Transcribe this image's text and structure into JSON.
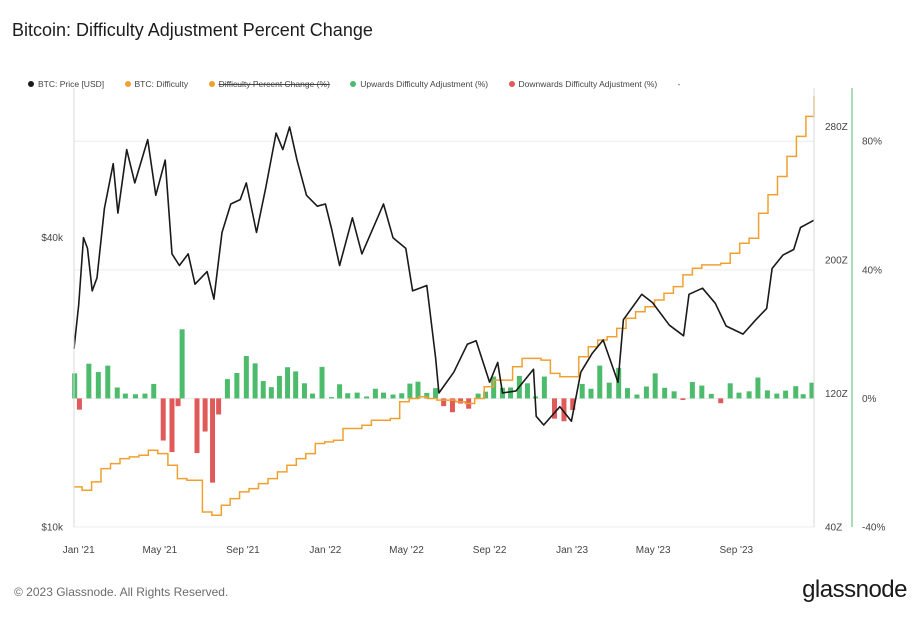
{
  "title": "Bitcoin: Difficulty Adjustment Percent Change",
  "legend": [
    {
      "label": "BTC: Price [USD]",
      "color": "#1a1a1a",
      "strike": false
    },
    {
      "label": "BTC: Difficulty",
      "color": "#f0a030",
      "strike": false
    },
    {
      "label": "Difficulty Percent Change (%)",
      "color": "#f0a030",
      "strike": true
    },
    {
      "label": "Upwards Difficulty Adjustment (%)",
      "color": "#4cbb6c",
      "strike": false
    },
    {
      "label": "Downwards Difficulty Adjustment (%)",
      "color": "#e05a5a",
      "strike": false
    }
  ],
  "legend_extra": "-",
  "footer": "© 2023 Glassnode. All Rights Reserved.",
  "brand": "glassnode",
  "colors": {
    "price": "#1a1a1a",
    "difficulty": "#f0a030",
    "up": "#4cbb6c",
    "down": "#e05a5a",
    "axis_right": "#4cbb6c"
  },
  "chart_data": {
    "type": "line",
    "title": "Bitcoin: Difficulty Adjustment Percent Change",
    "x_range": [
      "2020-12-25",
      "2023-12-25"
    ],
    "x_ticks": [
      {
        "label": "Jan '21",
        "date": "2021-01-01"
      },
      {
        "label": "May '21",
        "date": "2021-05-01"
      },
      {
        "label": "Sep '21",
        "date": "2021-09-01"
      },
      {
        "label": "Jan '22",
        "date": "2022-01-01"
      },
      {
        "label": "May '22",
        "date": "2022-05-01"
      },
      {
        "label": "Sep '22",
        "date": "2022-09-01"
      },
      {
        "label": "Jan '23",
        "date": "2023-01-01"
      },
      {
        "label": "May '23",
        "date": "2023-05-01"
      },
      {
        "label": "Sep '23",
        "date": "2023-09-01"
      }
    ],
    "axes": {
      "price": {
        "scale": "log",
        "range": [
          10000,
          80000
        ],
        "ticks": [
          {
            "label": "$40k",
            "value": 40000
          },
          {
            "label": "$10k",
            "value": 10000
          }
        ]
      },
      "difficulty": {
        "scale": "linear",
        "range": [
          40,
          300
        ],
        "unit": "Z",
        "ticks": [
          {
            "label": "280Z",
            "value": 280
          },
          {
            "label": "200Z",
            "value": 200
          },
          {
            "label": "120Z",
            "value": 120
          },
          {
            "label": "40Z",
            "value": 40
          }
        ]
      },
      "percent": {
        "scale": "linear",
        "range": [
          -40,
          95
        ],
        "ticks": [
          {
            "label": "80%",
            "value": 80
          },
          {
            "label": "40%",
            "value": 40
          },
          {
            "label": "0%",
            "value": 0
          },
          {
            "label": "-40%",
            "value": -40
          }
        ]
      }
    },
    "series": [
      {
        "name": "BTC: Price [USD]",
        "axis": "price",
        "points": [
          [
            "2020-12-25",
            23500
          ],
          [
            "2021-01-01",
            29000
          ],
          [
            "2021-01-08",
            40000
          ],
          [
            "2021-01-14",
            38000
          ],
          [
            "2021-01-21",
            31000
          ],
          [
            "2021-01-28",
            33000
          ],
          [
            "2021-02-08",
            46000
          ],
          [
            "2021-02-21",
            57000
          ],
          [
            "2021-02-28",
            45000
          ],
          [
            "2021-03-13",
            61000
          ],
          [
            "2021-03-25",
            52000
          ],
          [
            "2021-04-13",
            64000
          ],
          [
            "2021-04-25",
            49000
          ],
          [
            "2021-05-09",
            58000
          ],
          [
            "2021-05-19",
            37000
          ],
          [
            "2021-05-30",
            35000
          ],
          [
            "2021-06-12",
            37000
          ],
          [
            "2021-06-22",
            32000
          ],
          [
            "2021-07-10",
            34000
          ],
          [
            "2021-07-20",
            29800
          ],
          [
            "2021-08-01",
            41000
          ],
          [
            "2021-08-14",
            47000
          ],
          [
            "2021-08-28",
            48000
          ],
          [
            "2021-09-06",
            52000
          ],
          [
            "2021-09-21",
            41000
          ],
          [
            "2021-10-05",
            51000
          ],
          [
            "2021-10-20",
            66000
          ],
          [
            "2021-10-30",
            61000
          ],
          [
            "2021-11-09",
            68000
          ],
          [
            "2021-11-20",
            58000
          ],
          [
            "2021-12-04",
            49000
          ],
          [
            "2021-12-20",
            46500
          ],
          [
            "2022-01-01",
            47000
          ],
          [
            "2022-01-10",
            41800
          ],
          [
            "2022-01-22",
            35000
          ],
          [
            "2022-02-10",
            44000
          ],
          [
            "2022-02-24",
            37000
          ],
          [
            "2022-03-28",
            47000
          ],
          [
            "2022-04-11",
            40000
          ],
          [
            "2022-04-30",
            38000
          ],
          [
            "2022-05-10",
            31000
          ],
          [
            "2022-05-31",
            31800
          ],
          [
            "2022-06-13",
            22500
          ],
          [
            "2022-06-18",
            19000
          ],
          [
            "2022-07-10",
            21000
          ],
          [
            "2022-07-30",
            24000
          ],
          [
            "2022-08-12",
            24400
          ],
          [
            "2022-09-01",
            20000
          ],
          [
            "2022-09-13",
            22000
          ],
          [
            "2022-09-20",
            19000
          ],
          [
            "2022-10-10",
            19200
          ],
          [
            "2022-11-05",
            21300
          ],
          [
            "2022-11-09",
            17000
          ],
          [
            "2022-11-20",
            16300
          ],
          [
            "2022-12-14",
            17800
          ],
          [
            "2022-12-31",
            16600
          ],
          [
            "2023-01-14",
            21000
          ],
          [
            "2023-01-31",
            23000
          ],
          [
            "2023-02-16",
            24500
          ],
          [
            "2023-03-10",
            20000
          ],
          [
            "2023-03-18",
            27000
          ],
          [
            "2023-04-14",
            30500
          ],
          [
            "2023-04-30",
            29300
          ],
          [
            "2023-05-25",
            26300
          ],
          [
            "2023-06-15",
            25000
          ],
          [
            "2023-06-23",
            30500
          ],
          [
            "2023-07-13",
            31400
          ],
          [
            "2023-08-01",
            29200
          ],
          [
            "2023-08-17",
            26200
          ],
          [
            "2023-09-11",
            25200
          ],
          [
            "2023-09-30",
            27000
          ],
          [
            "2023-10-16",
            28500
          ],
          [
            "2023-10-24",
            34500
          ],
          [
            "2023-11-09",
            36800
          ],
          [
            "2023-11-25",
            37800
          ],
          [
            "2023-12-05",
            42000
          ],
          [
            "2023-12-25",
            43500
          ]
        ]
      },
      {
        "name": "BTC: Difficulty",
        "axis": "difficulty",
        "points": [
          [
            "2020-12-25",
            64
          ],
          [
            "2021-01-06",
            62
          ],
          [
            "2021-01-20",
            67
          ],
          [
            "2021-02-03",
            75
          ],
          [
            "2021-02-17",
            78
          ],
          [
            "2021-03-03",
            81
          ],
          [
            "2021-03-17",
            82
          ],
          [
            "2021-03-31",
            83
          ],
          [
            "2021-04-14",
            86
          ],
          [
            "2021-04-28",
            84
          ],
          [
            "2021-05-13",
            77
          ],
          [
            "2021-05-27",
            69
          ],
          [
            "2021-06-10",
            68
          ],
          [
            "2021-07-03",
            49
          ],
          [
            "2021-07-17",
            47
          ],
          [
            "2021-07-31",
            53
          ],
          [
            "2021-08-13",
            57
          ],
          [
            "2021-08-27",
            61
          ],
          [
            "2021-09-10",
            63
          ],
          [
            "2021-09-24",
            66
          ],
          [
            "2021-10-08",
            69
          ],
          [
            "2021-10-22",
            73
          ],
          [
            "2021-11-05",
            77
          ],
          [
            "2021-11-19",
            81
          ],
          [
            "2021-12-03",
            84
          ],
          [
            "2021-12-17",
            90
          ],
          [
            "2021-12-31",
            91
          ],
          [
            "2022-01-13",
            92
          ],
          [
            "2022-01-27",
            99
          ],
          [
            "2022-02-10",
            99
          ],
          [
            "2022-02-24",
            101
          ],
          [
            "2022-03-10",
            104
          ],
          [
            "2022-03-24",
            104
          ],
          [
            "2022-04-07",
            105
          ],
          [
            "2022-04-21",
            115
          ],
          [
            "2022-05-05",
            117
          ],
          [
            "2022-05-19",
            118
          ],
          [
            "2022-06-01",
            117
          ],
          [
            "2022-06-15",
            116
          ],
          [
            "2022-06-29",
            116
          ],
          [
            "2022-07-13",
            115
          ],
          [
            "2022-07-27",
            114
          ],
          [
            "2022-08-10",
            117
          ],
          [
            "2022-08-24",
            124
          ],
          [
            "2022-09-07",
            128
          ],
          [
            "2022-09-21",
            128
          ],
          [
            "2022-10-05",
            136
          ],
          [
            "2022-10-19",
            141
          ],
          [
            "2022-11-02",
            141
          ],
          [
            "2022-11-16",
            140
          ],
          [
            "2022-11-30",
            132
          ],
          [
            "2022-12-14",
            130
          ],
          [
            "2022-12-28",
            130
          ],
          [
            "2023-01-11",
            142
          ],
          [
            "2023-01-25",
            148
          ],
          [
            "2023-02-08",
            152
          ],
          [
            "2023-02-22",
            154
          ],
          [
            "2023-03-08",
            159
          ],
          [
            "2023-03-22",
            165
          ],
          [
            "2023-04-05",
            169
          ],
          [
            "2023-04-19",
            172
          ],
          [
            "2023-05-03",
            176
          ],
          [
            "2023-05-17",
            180
          ],
          [
            "2023-05-31",
            184
          ],
          [
            "2023-06-14",
            191
          ],
          [
            "2023-06-28",
            195
          ],
          [
            "2023-07-12",
            197
          ],
          [
            "2023-07-26",
            197
          ],
          [
            "2023-08-09",
            198
          ],
          [
            "2023-08-23",
            204
          ],
          [
            "2023-09-06",
            210
          ],
          [
            "2023-09-20",
            213
          ],
          [
            "2023-10-04",
            228
          ],
          [
            "2023-10-18",
            239
          ],
          [
            "2023-11-01",
            250
          ],
          [
            "2023-11-15",
            262
          ],
          [
            "2023-11-29",
            274
          ],
          [
            "2023-12-13",
            286
          ],
          [
            "2023-12-25",
            298
          ]
        ]
      }
    ],
    "bars": {
      "name": "Difficulty Percent Change (%)",
      "axis": "percent",
      "points": [
        [
          "2020-12-26",
          7.8
        ],
        [
          "2021-01-02",
          -3.5
        ],
        [
          "2021-01-16",
          10.8
        ],
        [
          "2021-01-30",
          8.2
        ],
        [
          "2021-02-13",
          10.2
        ],
        [
          "2021-02-27",
          3.4
        ],
        [
          "2021-03-11",
          1.5
        ],
        [
          "2021-03-26",
          1.3
        ],
        [
          "2021-04-09",
          1.5
        ],
        [
          "2021-04-22",
          4.5
        ],
        [
          "2021-05-06",
          -13.1
        ],
        [
          "2021-05-19",
          -16.7
        ],
        [
          "2021-05-28",
          -2.4
        ],
        [
          "2021-06-03",
          21.5
        ],
        [
          "2021-06-25",
          -17.0
        ],
        [
          "2021-07-07",
          -10.3
        ],
        [
          "2021-07-18",
          -26.2
        ],
        [
          "2021-07-27",
          -5.0
        ],
        [
          "2021-08-09",
          6.0
        ],
        [
          "2021-08-23",
          7.9
        ],
        [
          "2021-09-06",
          13.2
        ],
        [
          "2021-09-19",
          10.9
        ],
        [
          "2021-10-01",
          5.4
        ],
        [
          "2021-10-13",
          3.5
        ],
        [
          "2021-10-25",
          7.0
        ],
        [
          "2021-11-06",
          9.7
        ],
        [
          "2021-11-18",
          8.4
        ],
        [
          "2021-12-01",
          4.7
        ],
        [
          "2021-12-13",
          1.5
        ],
        [
          "2021-12-27",
          9.8
        ],
        [
          "2022-01-10",
          0.4
        ],
        [
          "2022-01-22",
          4.4
        ],
        [
          "2022-02-03",
          1.6
        ],
        [
          "2022-02-17",
          1.8
        ],
        [
          "2022-03-03",
          0.6
        ],
        [
          "2022-03-16",
          3.0
        ],
        [
          "2022-03-28",
          1.8
        ],
        [
          "2022-04-11",
          1.2
        ],
        [
          "2022-04-24",
          1.6
        ],
        [
          "2022-05-06",
          4.6
        ],
        [
          "2022-05-18",
          5.2
        ],
        [
          "2022-05-31",
          1.7
        ],
        [
          "2022-06-13",
          3.2
        ],
        [
          "2022-06-25",
          -2.4
        ],
        [
          "2022-07-08",
          -4.3
        ],
        [
          "2022-07-20",
          -1.6
        ],
        [
          "2022-08-01",
          -3.2
        ],
        [
          "2022-08-15",
          1.5
        ],
        [
          "2022-08-26",
          2.1
        ],
        [
          "2022-09-07",
          6.8
        ],
        [
          "2022-09-20",
          3.3
        ],
        [
          "2022-10-02",
          3.4
        ],
        [
          "2022-10-15",
          7.0
        ],
        [
          "2022-10-27",
          4.7
        ],
        [
          "2022-11-08",
          0.6
        ],
        [
          "2022-11-21",
          6.8
        ],
        [
          "2022-12-06",
          -6.3
        ],
        [
          "2022-12-20",
          -7.1
        ],
        [
          "2023-01-02",
          -3.6
        ],
        [
          "2023-01-16",
          4.5
        ],
        [
          "2023-01-29",
          3.0
        ],
        [
          "2023-02-11",
          10.2
        ],
        [
          "2023-02-25",
          4.9
        ],
        [
          "2023-03-11",
          9.5
        ],
        [
          "2023-03-24",
          3.2
        ],
        [
          "2023-04-07",
          1.2
        ],
        [
          "2023-04-21",
          3.7
        ],
        [
          "2023-05-04",
          7.8
        ],
        [
          "2023-05-18",
          3.3
        ],
        [
          "2023-06-01",
          2.2
        ],
        [
          "2023-06-14",
          -0.5
        ],
        [
          "2023-06-28",
          5.1
        ],
        [
          "2023-07-12",
          4.0
        ],
        [
          "2023-07-26",
          1.4
        ],
        [
          "2023-08-09",
          -1.5
        ],
        [
          "2023-08-23",
          4.7
        ],
        [
          "2023-09-05",
          1.8
        ],
        [
          "2023-09-20",
          2.2
        ],
        [
          "2023-10-03",
          6.5
        ],
        [
          "2023-10-17",
          2.5
        ],
        [
          "2023-10-31",
          1.5
        ],
        [
          "2023-11-13",
          2.4
        ],
        [
          "2023-11-28",
          3.8
        ],
        [
          "2023-12-09",
          1.3
        ],
        [
          "2023-12-22",
          4.9
        ]
      ]
    }
  }
}
